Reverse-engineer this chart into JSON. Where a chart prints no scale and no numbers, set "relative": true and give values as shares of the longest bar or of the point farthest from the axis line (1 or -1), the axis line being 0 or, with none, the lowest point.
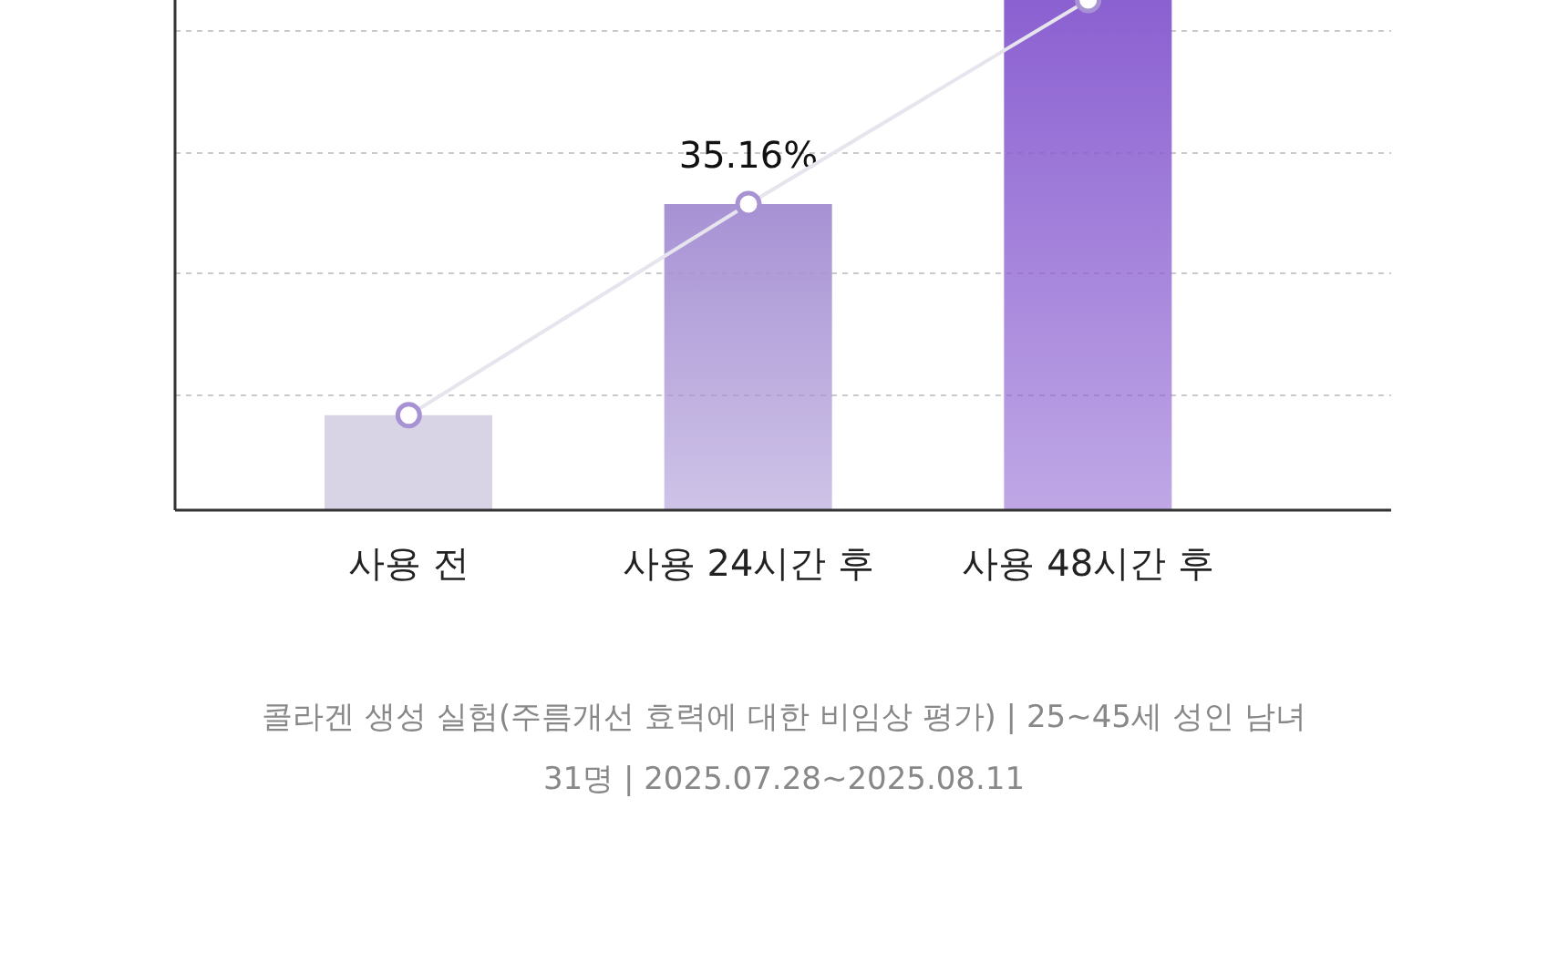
{
  "chart_data": {
    "type": "bar",
    "relative": true,
    "categories": [
      "사용 전",
      "사용 24시간 후",
      "사용 48시간 후"
    ],
    "series": [
      {
        "colors": [
          "#d9d3e6",
          "#a792d4",
          "#8b60d1"
        ],
        "values": [
          0.186,
          0.6,
          1
        ]
      },
      {
        "type": "line",
        "color": "#e6e4ec",
        "marker": "circle",
        "values": [
          0.186,
          0.6,
          1
        ]
      }
    ],
    "grid": "y",
    "annotations": [
      {
        "text": "35.16%",
        "x": "사용 24시간 후",
        "y": 0.6
      },
      "콜라겐 생성 실험(주름개선 효력에 대한 비임상 평가) | 25~45세 성인 남녀",
      "31명 | 2025.07.28~2025.08.11"
    ]
  }
}
